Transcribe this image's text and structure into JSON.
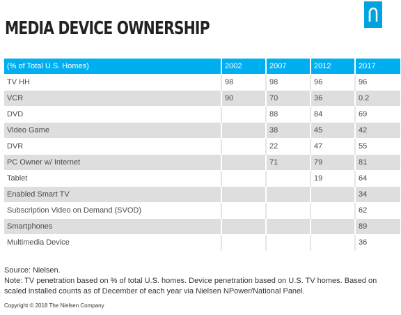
{
  "title": "MEDIA DEVICE OWNERSHIP",
  "brand": {
    "icon": "nielsen-n-logo",
    "color": "#00a3e0"
  },
  "colors": {
    "header_bg": "#00aff0",
    "row_alt_bg": "#dedede"
  },
  "chart_data": {
    "type": "table",
    "columns": [
      "(% of Total U.S. Homes)",
      "2002",
      "2007",
      "2012",
      "2017"
    ],
    "rows": [
      [
        "TV HH",
        "98",
        "98",
        "96",
        "96"
      ],
      [
        "VCR",
        "90",
        "70",
        "36",
        "0.2"
      ],
      [
        "DVD",
        "",
        "88",
        "84",
        "69"
      ],
      [
        "Video Game",
        "",
        "38",
        "45",
        "42"
      ],
      [
        "DVR",
        "",
        "22",
        "47",
        "55"
      ],
      [
        "PC Owner w/ Internet",
        "",
        "71",
        "79",
        "81"
      ],
      [
        "Tablet",
        "",
        "",
        "19",
        "64"
      ],
      [
        "Enabled Smart TV",
        "",
        "",
        "",
        "34"
      ],
      [
        "Subscription Video on Demand  (SVOD)",
        "",
        "",
        "",
        "62"
      ],
      [
        "Smartphones",
        "",
        "",
        "",
        "89"
      ],
      [
        "Multimedia Device",
        "",
        "",
        "",
        "36"
      ]
    ]
  },
  "source": "Source: Nielsen.",
  "note": "Note: TV penetration based on % of total U.S. homes. Device penetration based on U.S. TV homes. Based on scaled installed counts as of December of each year via Nielsen NPower/National Panel.",
  "copyright": "Copyright © 2018 The Nielsen Company"
}
